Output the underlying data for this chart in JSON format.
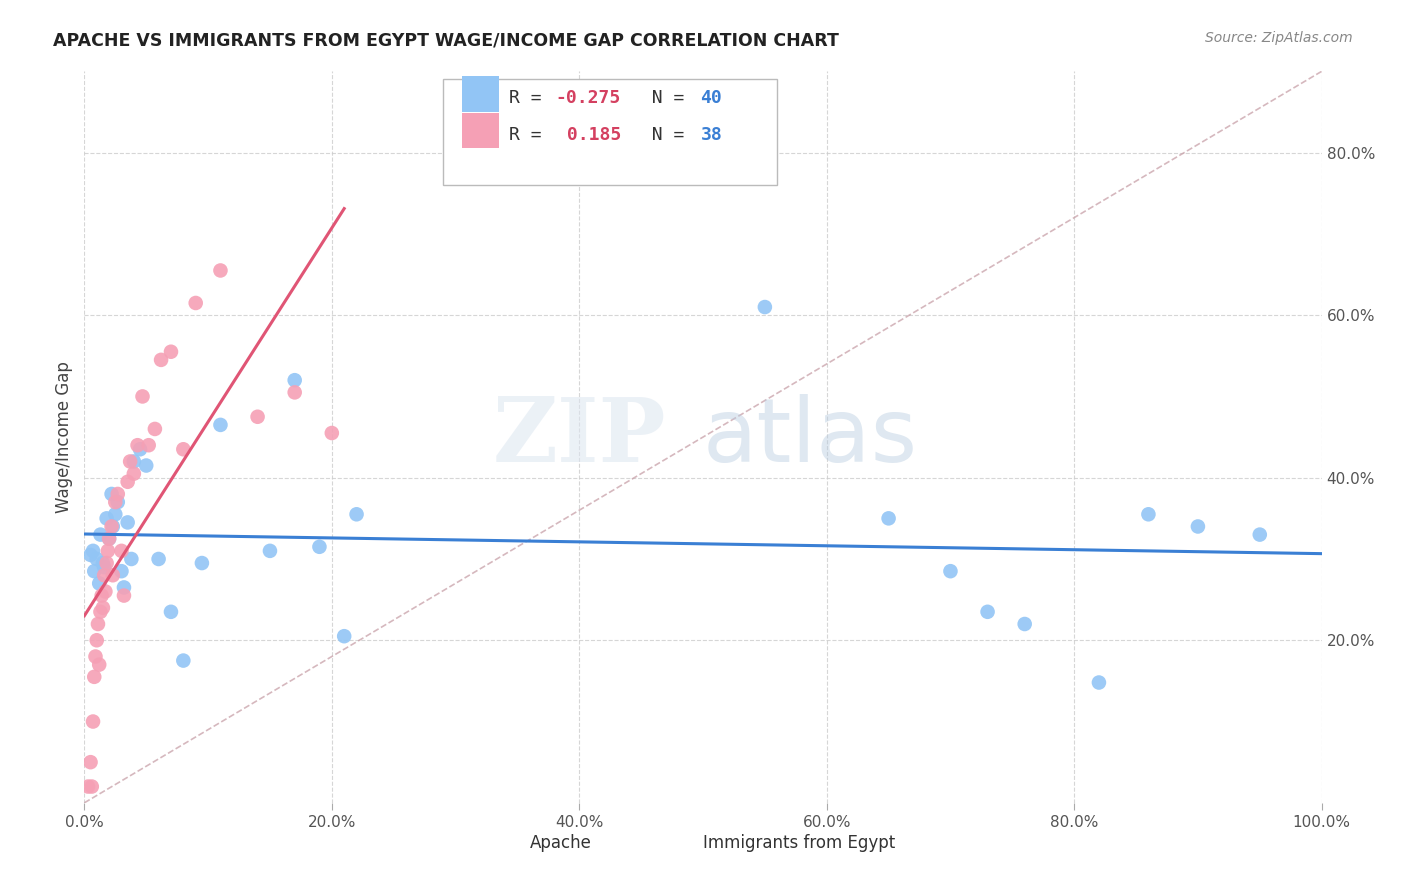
{
  "title": "APACHE VS IMMIGRANTS FROM EGYPT WAGE/INCOME GAP CORRELATION CHART",
  "source": "Source: ZipAtlas.com",
  "ylabel": "Wage/Income Gap",
  "xlim": [
    0.0,
    1.0
  ],
  "ylim": [
    0.0,
    0.9
  ],
  "xticks": [
    0.0,
    0.2,
    0.4,
    0.6,
    0.8,
    1.0
  ],
  "yticks": [
    0.2,
    0.4,
    0.6,
    0.8
  ],
  "xticklabels": [
    "0.0%",
    "20.0%",
    "40.0%",
    "60.0%",
    "80.0%",
    "100.0%"
  ],
  "yticklabels": [
    "20.0%",
    "40.0%",
    "60.0%",
    "80.0%"
  ],
  "apache_color": "#92c5f5",
  "egypt_color": "#f5a0b5",
  "apache_line_color": "#3a7fd4",
  "egypt_line_color": "#e05575",
  "diag_line_color": "#c8a0a8",
  "legend_R_apache": "-0.275",
  "legend_N_apache": "40",
  "legend_R_egypt": "0.185",
  "legend_N_egypt": "38",
  "watermark_zip": "ZIP",
  "watermark_atlas": "atlas",
  "background_color": "#ffffff",
  "grid_color": "#cccccc",
  "apache_x": [
    0.005,
    0.007,
    0.008,
    0.01,
    0.012,
    0.013,
    0.015,
    0.016,
    0.018,
    0.02,
    0.022,
    0.023,
    0.025,
    0.027,
    0.03,
    0.032,
    0.035,
    0.038,
    0.04,
    0.045,
    0.05,
    0.06,
    0.07,
    0.08,
    0.095,
    0.11,
    0.15,
    0.17,
    0.19,
    0.21,
    0.22,
    0.55,
    0.65,
    0.7,
    0.73,
    0.76,
    0.82,
    0.86,
    0.9,
    0.95
  ],
  "apache_y": [
    0.305,
    0.31,
    0.285,
    0.3,
    0.27,
    0.33,
    0.295,
    0.29,
    0.35,
    0.325,
    0.38,
    0.34,
    0.355,
    0.37,
    0.285,
    0.265,
    0.345,
    0.3,
    0.42,
    0.435,
    0.415,
    0.3,
    0.235,
    0.175,
    0.295,
    0.465,
    0.31,
    0.52,
    0.315,
    0.205,
    0.355,
    0.61,
    0.35,
    0.285,
    0.235,
    0.22,
    0.148,
    0.355,
    0.34,
    0.33
  ],
  "egypt_x": [
    0.003,
    0.005,
    0.006,
    0.007,
    0.008,
    0.009,
    0.01,
    0.011,
    0.012,
    0.013,
    0.014,
    0.015,
    0.016,
    0.017,
    0.018,
    0.019,
    0.02,
    0.022,
    0.023,
    0.025,
    0.027,
    0.03,
    0.032,
    0.035,
    0.037,
    0.04,
    0.043,
    0.047,
    0.052,
    0.057,
    0.062,
    0.07,
    0.08,
    0.09,
    0.11,
    0.14,
    0.17,
    0.2
  ],
  "egypt_y": [
    0.02,
    0.05,
    0.02,
    0.1,
    0.155,
    0.18,
    0.2,
    0.22,
    0.17,
    0.235,
    0.255,
    0.24,
    0.28,
    0.26,
    0.295,
    0.31,
    0.325,
    0.34,
    0.28,
    0.37,
    0.38,
    0.31,
    0.255,
    0.395,
    0.42,
    0.405,
    0.44,
    0.5,
    0.44,
    0.46,
    0.545,
    0.555,
    0.435,
    0.615,
    0.655,
    0.475,
    0.505,
    0.455
  ]
}
